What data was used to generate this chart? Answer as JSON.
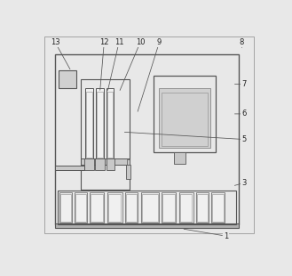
{
  "bg": "#e8e8e8",
  "lc": "#555555",
  "lc2": "#888888",
  "fc_light": "#d8d8d8",
  "fc_white": "#f0f0f0",
  "labels_info": {
    "13": [
      0.055,
      0.955,
      0.13,
      0.82
    ],
    "12": [
      0.285,
      0.955,
      0.265,
      0.72
    ],
    "11": [
      0.355,
      0.955,
      0.3,
      0.72
    ],
    "10": [
      0.455,
      0.955,
      0.355,
      0.72
    ],
    "9": [
      0.545,
      0.955,
      0.44,
      0.62
    ],
    "8": [
      0.935,
      0.955,
      0.935,
      0.92
    ],
    "7": [
      0.945,
      0.76,
      0.89,
      0.76
    ],
    "6": [
      0.945,
      0.62,
      0.89,
      0.62
    ],
    "5": [
      0.945,
      0.5,
      0.37,
      0.535
    ],
    "3": [
      0.945,
      0.295,
      0.89,
      0.28
    ],
    "1": [
      0.86,
      0.045,
      0.65,
      0.08
    ]
  }
}
